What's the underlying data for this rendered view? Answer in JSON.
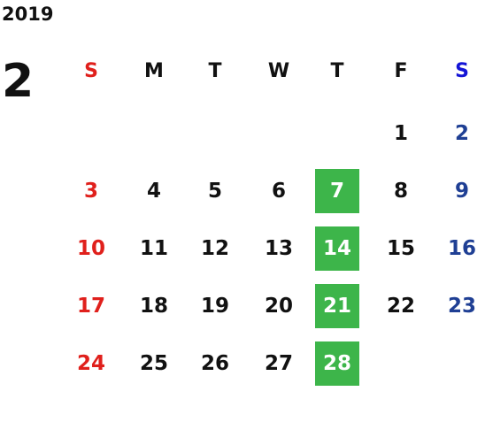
{
  "year": "2019",
  "month": "2",
  "weekdays": [
    "S",
    "M",
    "T",
    "W",
    "T",
    "F",
    "S"
  ],
  "weeks": [
    [
      null,
      null,
      null,
      null,
      null,
      1,
      2
    ],
    [
      3,
      4,
      5,
      6,
      7,
      8,
      9
    ],
    [
      10,
      11,
      12,
      13,
      14,
      15,
      16
    ],
    [
      17,
      18,
      19,
      20,
      21,
      22,
      23
    ],
    [
      24,
      25,
      26,
      27,
      28,
      null,
      null
    ]
  ]
}
